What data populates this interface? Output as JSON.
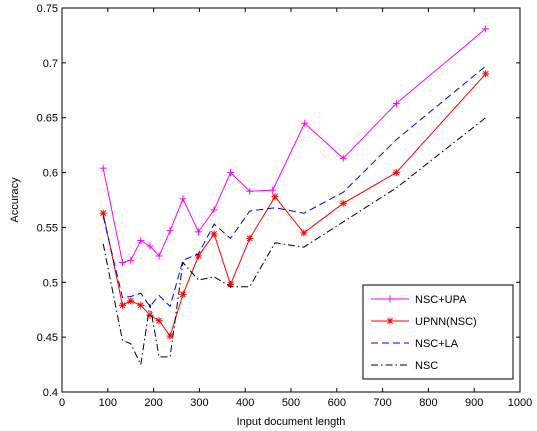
{
  "chart_data": {
    "type": "line",
    "xlabel": "Input document length",
    "ylabel": "Accuracy",
    "xlim": [
      0,
      1000
    ],
    "ylim": [
      0.4,
      0.75
    ],
    "xticks": [
      0,
      100,
      200,
      300,
      400,
      500,
      600,
      700,
      800,
      900,
      1000
    ],
    "yticks": [
      0.4,
      0.45,
      0.5,
      0.55,
      0.6,
      0.65,
      0.7,
      0.75
    ],
    "xtick_labels": [
      "0",
      "100",
      "200",
      "300",
      "400",
      "500",
      "600",
      "700",
      "800",
      "900",
      "1000"
    ],
    "ytick_labels": [
      "0.4",
      "0.45",
      "0.5",
      "0.55",
      "0.6",
      "0.65",
      "0.7",
      "0.75"
    ],
    "grid": false,
    "legend_position": "bottom-right",
    "series": [
      {
        "name": "NSC+UPA",
        "color": "#ff00ff",
        "line_style": "solid",
        "marker": "plus",
        "x": [
          90,
          132,
          150,
          172,
          192,
          212,
          236,
          264,
          298,
          332,
          368,
          410,
          460,
          530,
          614,
          730,
          925
        ],
        "y": [
          0.604,
          0.518,
          0.52,
          0.538,
          0.533,
          0.524,
          0.547,
          0.576,
          0.546,
          0.566,
          0.6,
          0.583,
          0.584,
          0.645,
          0.613,
          0.663,
          0.731
        ]
      },
      {
        "name": "UPNN(NSC)",
        "color": "#ff0000",
        "line_style": "solid",
        "marker": "star",
        "x": [
          90,
          132,
          150,
          172,
          192,
          212,
          236,
          264,
          298,
          332,
          368,
          410,
          465,
          528,
          614,
          730,
          925
        ],
        "y": [
          0.563,
          0.479,
          0.483,
          0.479,
          0.47,
          0.465,
          0.451,
          0.489,
          0.524,
          0.544,
          0.498,
          0.54,
          0.578,
          0.545,
          0.572,
          0.6,
          0.69
        ]
      },
      {
        "name": "NSC+LA",
        "color": "#0000ff",
        "line_style": "dashed",
        "marker": "none",
        "x": [
          90,
          132,
          150,
          172,
          192,
          212,
          236,
          264,
          298,
          332,
          368,
          410,
          465,
          528,
          614,
          730,
          925
        ],
        "y": [
          0.56,
          0.486,
          0.487,
          0.49,
          0.478,
          0.488,
          0.478,
          0.52,
          0.526,
          0.553,
          0.54,
          0.565,
          0.568,
          0.563,
          0.582,
          0.63,
          0.697
        ]
      },
      {
        "name": "NSC",
        "color": "#000000",
        "line_style": "dashdot",
        "marker": "none",
        "x": [
          90,
          132,
          150,
          172,
          192,
          212,
          236,
          264,
          298,
          332,
          368,
          410,
          465,
          528,
          614,
          730,
          925
        ],
        "y": [
          0.535,
          0.447,
          0.444,
          0.425,
          0.48,
          0.432,
          0.432,
          0.518,
          0.502,
          0.505,
          0.496,
          0.496,
          0.536,
          0.532,
          0.555,
          0.586,
          0.65
        ]
      }
    ]
  }
}
